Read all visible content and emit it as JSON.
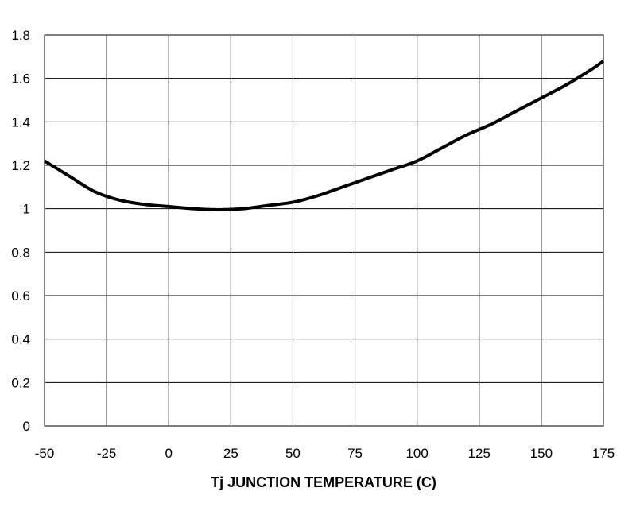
{
  "chart_data": {
    "type": "line",
    "title": "",
    "xlabel": "Tj JUNCTION TEMPERATURE (C)",
    "ylabel": "",
    "xlim": [
      -50,
      175
    ],
    "ylim": [
      0,
      1.8
    ],
    "x_ticks": [
      -50,
      -25,
      0,
      25,
      50,
      75,
      100,
      125,
      150,
      175
    ],
    "y_ticks": [
      0,
      0.2,
      0.4,
      0.6,
      0.8,
      1,
      1.2,
      1.4,
      1.6,
      1.8
    ],
    "x_tick_labels": [
      "-50",
      "-25",
      "0",
      "25",
      "50",
      "75",
      "100",
      "125",
      "150",
      "175"
    ],
    "y_tick_labels": [
      "0",
      "0.2",
      "0.4",
      "0.6",
      "0.8",
      "1",
      "1.2",
      "1.4",
      "1.6",
      "1.8"
    ],
    "grid": true,
    "legend": "none",
    "series": [
      {
        "color": "#000000",
        "x": [
          -50,
          -40,
          -30,
          -20,
          -10,
          0,
          10,
          20,
          30,
          40,
          50,
          60,
          70,
          80,
          90,
          100,
          110,
          120,
          130,
          140,
          150,
          160,
          170,
          175
        ],
        "y": [
          1.22,
          1.15,
          1.08,
          1.04,
          1.02,
          1.01,
          1.0,
          0.995,
          1.0,
          1.015,
          1.03,
          1.06,
          1.1,
          1.14,
          1.18,
          1.22,
          1.28,
          1.34,
          1.39,
          1.45,
          1.51,
          1.57,
          1.64,
          1.68
        ]
      }
    ]
  }
}
